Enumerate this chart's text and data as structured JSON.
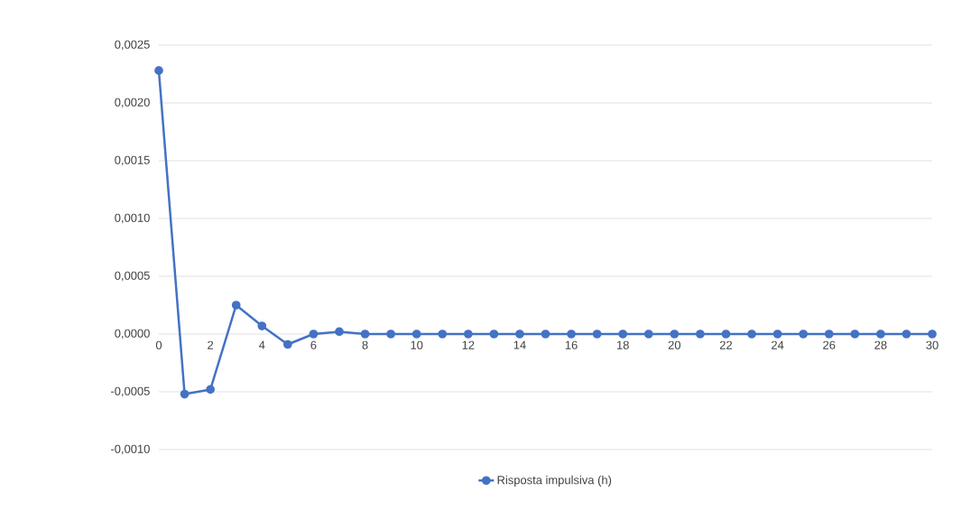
{
  "chart_data": {
    "type": "line",
    "x": [
      0,
      1,
      2,
      3,
      4,
      5,
      6,
      7,
      8,
      9,
      10,
      11,
      12,
      13,
      14,
      15,
      16,
      17,
      18,
      19,
      20,
      21,
      22,
      23,
      24,
      25,
      26,
      27,
      28,
      29,
      30
    ],
    "series": [
      {
        "name": "Risposta impulsiva (h)",
        "color": "#4472c4",
        "values": [
          0.00228,
          -0.00052,
          -0.00048,
          0.00025,
          7e-05,
          -9e-05,
          0.0,
          2e-05,
          0.0,
          0.0,
          0.0,
          0.0,
          0.0,
          0.0,
          0.0,
          0.0,
          0.0,
          0.0,
          0.0,
          0.0,
          0.0,
          0.0,
          0.0,
          0.0,
          0.0,
          0.0,
          0.0,
          0.0,
          0.0,
          0.0,
          0.0
        ]
      }
    ],
    "xlim": [
      0,
      30
    ],
    "xticks": [
      0,
      2,
      4,
      6,
      8,
      10,
      12,
      14,
      16,
      18,
      20,
      22,
      24,
      26,
      28,
      30
    ],
    "ylim": [
      -0.001,
      0.0025
    ],
    "yticks": [
      {
        "value": -0.001,
        "label": "-0,0010"
      },
      {
        "value": -0.0005,
        "label": "-0,0005"
      },
      {
        "value": 0,
        "label": "0,0000"
      },
      {
        "value": 0.0005,
        "label": "0,0005"
      },
      {
        "value": 0.001,
        "label": "0,0010"
      },
      {
        "value": 0.0015,
        "label": "0,0015"
      },
      {
        "value": 0.002,
        "label": "0,0020"
      },
      {
        "value": 0.0025,
        "label": "0,0025"
      }
    ],
    "grid": "y",
    "legend": "bottom",
    "marker": "circle",
    "line_style": "solid"
  }
}
